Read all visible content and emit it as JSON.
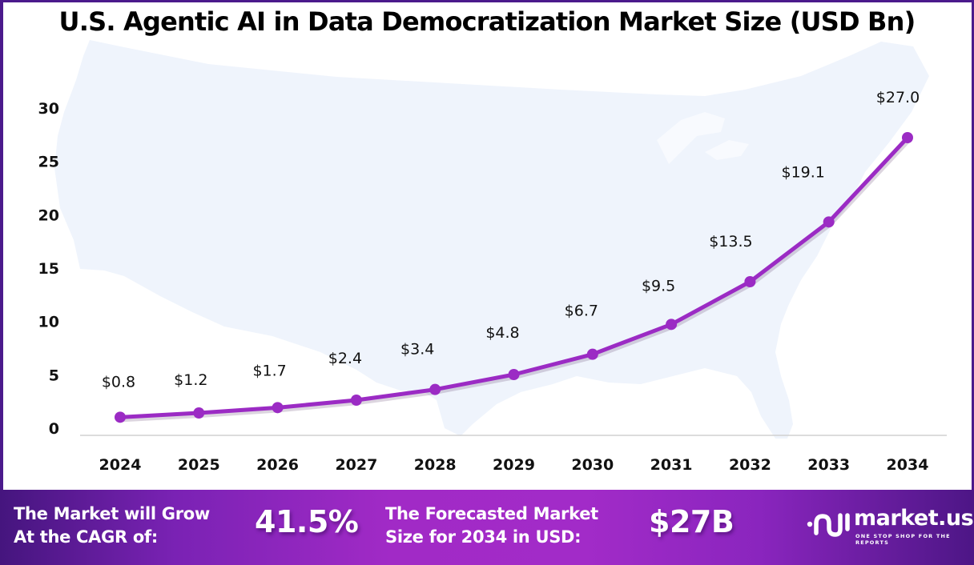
{
  "chart_data": {
    "type": "line",
    "title": "U.S. Agentic AI in Data Democratization Market Size (USD Bn)",
    "xlabel": "",
    "ylabel": "",
    "categories": [
      "2024",
      "2025",
      "2026",
      "2027",
      "2028",
      "2029",
      "2030",
      "2031",
      "2032",
      "2033",
      "2034"
    ],
    "series": [
      {
        "name": "Market Size (USD Bn)",
        "values": [
          0.8,
          1.2,
          1.7,
          2.4,
          3.4,
          4.8,
          6.7,
          9.5,
          13.5,
          19.1,
          27.0
        ],
        "labels": [
          "$0.8",
          "$1.2",
          "$1.7",
          "$2.4",
          "$3.4",
          "$4.8",
          "$6.7",
          "$9.5",
          "$13.5",
          "$19.1",
          "$27.0"
        ],
        "color": "#9b2bc4"
      }
    ],
    "yticks": [
      "0",
      "5",
      "10",
      "15",
      "20",
      "25",
      "30"
    ],
    "ylim": [
      0,
      30
    ],
    "grid": false,
    "legend": "none",
    "background": "U.S. map silhouette (light blue)"
  },
  "footer": {
    "cagr_label_line1": "The Market will Grow",
    "cagr_label_line2": "At the CAGR of:",
    "cagr_value": "41.5%",
    "forecast_label_line1": "The Forecasted Market",
    "forecast_label_line2": "Size for 2034 in USD:",
    "forecast_value": "$27B",
    "brand_name": "market.us",
    "brand_tagline": "ONE STOP SHOP FOR THE REPORTS"
  },
  "colors": {
    "frame": "#4b1a8c",
    "line": "#9b2bc4",
    "map": "#eff4fc",
    "footer_mid": "#a22bc8"
  }
}
